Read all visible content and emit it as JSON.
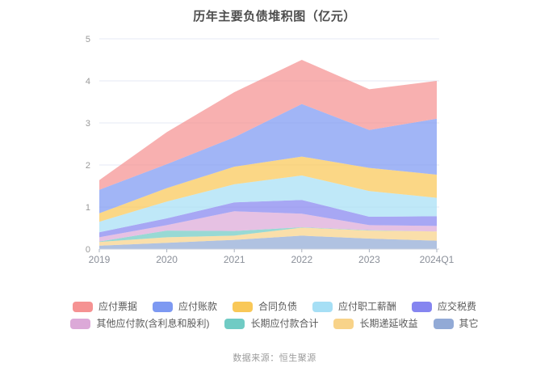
{
  "footer": {
    "source_label": "数据来源：恒生聚源"
  },
  "chart_data": {
    "type": "area",
    "stacked": true,
    "title": "历年主要负债堆积图（亿元）",
    "categories": [
      "2019",
      "2020",
      "2021",
      "2022",
      "2023",
      "2024Q1"
    ],
    "series": [
      {
        "name": "应付票据",
        "color": "#F59292",
        "values": [
          0.23,
          0.76,
          1.07,
          1.05,
          0.97,
          0.9
        ]
      },
      {
        "name": "应付账款",
        "color": "#7D99F2",
        "values": [
          0.56,
          0.57,
          0.7,
          1.25,
          0.9,
          1.33
        ]
      },
      {
        "name": "合同负债",
        "color": "#F9C858",
        "values": [
          0.2,
          0.32,
          0.42,
          0.45,
          0.55,
          0.55
        ]
      },
      {
        "name": "应付职工薪酬",
        "color": "#A6DFF5",
        "values": [
          0.25,
          0.4,
          0.43,
          0.58,
          0.61,
          0.44
        ]
      },
      {
        "name": "应交税费",
        "color": "#8585F0",
        "values": [
          0.12,
          0.16,
          0.21,
          0.33,
          0.2,
          0.23
        ]
      },
      {
        "name": "其他应付款(含利息和股利)",
        "color": "#DCA9D8",
        "values": [
          0.1,
          0.13,
          0.47,
          0.32,
          0.12,
          0.13
        ]
      },
      {
        "name": "长期应付款合计",
        "color": "#70CBC4",
        "values": [
          0.01,
          0.16,
          0.11,
          0.01,
          0.01,
          0.0
        ]
      },
      {
        "name": "长期递延收益",
        "color": "#F8D389",
        "values": [
          0.09,
          0.13,
          0.1,
          0.19,
          0.19,
          0.22
        ]
      },
      {
        "name": "其它",
        "color": "#92AAD6",
        "values": [
          0.08,
          0.15,
          0.22,
          0.32,
          0.25,
          0.2
        ]
      }
    ],
    "stack_order": "last_series_at_bottom",
    "ylim": [
      0,
      5
    ],
    "yticks": [
      0,
      1,
      2,
      3,
      4,
      5
    ],
    "grid": true,
    "legend_position": "bottom",
    "fill_opacity": 0.72,
    "xlabel": "",
    "ylabel": ""
  }
}
